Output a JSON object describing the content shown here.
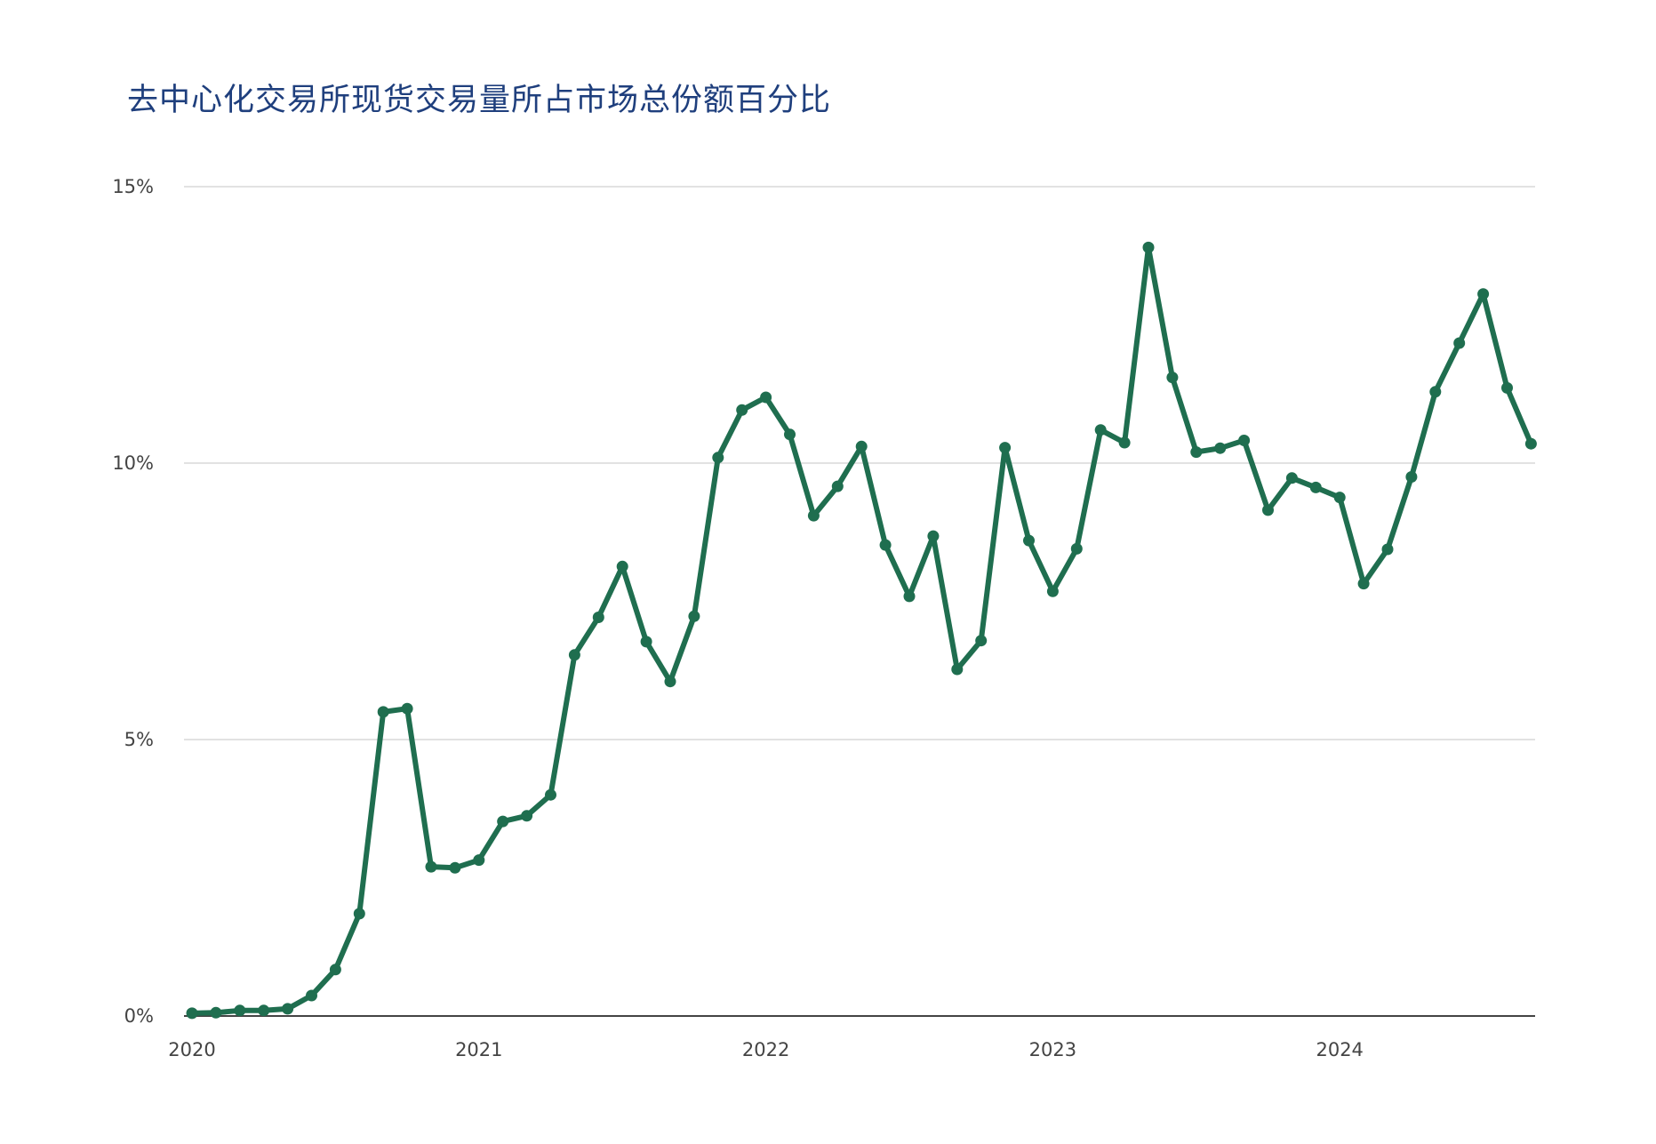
{
  "title": "去中心化交易所现货交易量所占市场总份额百分比",
  "colors": {
    "series": "#1f6e4f",
    "title": "#1f3f7d",
    "grid": "#d9d9d9",
    "axis": "#444444"
  },
  "chart_data": {
    "type": "line",
    "title": "去中心化交易所现货交易量所占市场总份额百分比",
    "xlabel": "",
    "ylabel": "",
    "x_start": "2020-01",
    "x_interval": "month",
    "x_ticks": [
      "2020",
      "2021",
      "2022",
      "2023",
      "2024"
    ],
    "y_ticks": [
      0,
      5,
      10,
      15
    ],
    "y_tick_labels": [
      "0%",
      "5%",
      "10%",
      "15%"
    ],
    "ylim": [
      0,
      15
    ],
    "grid": true,
    "markers": true,
    "series": [
      {
        "values": [
          0.05,
          0.06,
          0.1,
          0.1,
          0.13,
          0.37,
          0.84,
          1.85,
          5.5,
          5.56,
          2.7,
          2.68,
          2.82,
          3.52,
          3.62,
          4.0,
          6.53,
          7.21,
          8.13,
          6.77,
          6.05,
          7.23,
          10.1,
          10.96,
          11.19,
          10.52,
          9.05,
          9.58,
          10.3,
          8.52,
          7.59,
          8.68,
          6.27,
          6.79,
          10.28,
          8.6,
          7.68,
          8.45,
          10.6,
          10.37,
          13.9,
          11.55,
          10.2,
          10.27,
          10.41,
          9.15,
          9.73,
          9.56,
          9.38,
          7.82,
          8.44,
          9.75,
          11.29,
          12.17,
          13.06,
          11.36,
          10.35
        ]
      }
    ]
  }
}
